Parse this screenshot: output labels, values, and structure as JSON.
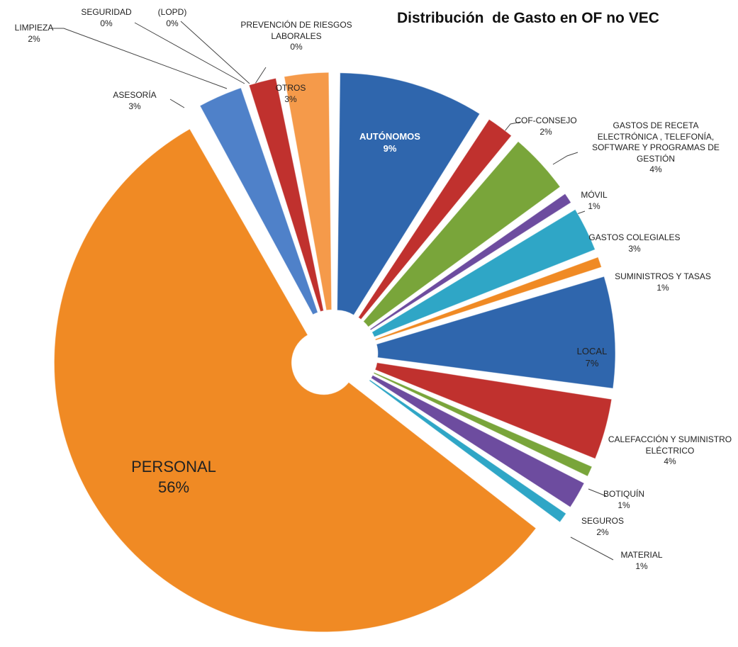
{
  "chart_data": {
    "type": "pie",
    "title": "Distribución  de Gasto en OF no VEC",
    "categories": [
      "AUTÓNOMOS",
      "COF-CONSEJO",
      "GASTOS DE RECETA ELECTRÓNICA , TELEFONÍA, SOFTWARE Y PROGRAMAS DE GESTIÓN",
      "MÓVIL",
      "GASTOS COLEGIALES",
      "SUMINISTROS Y TASAS",
      "LOCAL",
      "CALEFACCIÓN Y SUMINISTRO ELÉCTRICO",
      "BOTIQUÍN",
      "SEGUROS",
      "MATERIAL",
      "PERSONAL",
      "ASESORÍA",
      "LIMPIEZA",
      "SEGURIDAD",
      "(LOPD)",
      "PREVENCIÓN DE RIESGOS LABORALES",
      "OTROS"
    ],
    "values": [
      9,
      2,
      4,
      1,
      3,
      1,
      7,
      4,
      1,
      2,
      1,
      56,
      3,
      2,
      0,
      0,
      0,
      3
    ],
    "value_labels": [
      "9%",
      "2%",
      "4%",
      "1%",
      "3%",
      "1%",
      "7%",
      "4%",
      "1%",
      "2%",
      "1%",
      "56%",
      "3%",
      "2%",
      "0%",
      "0%",
      "0%",
      "3%"
    ],
    "colors": [
      "#2f66ad",
      "#c0312e",
      "#79a53a",
      "#6d4c9f",
      "#2fa6c6",
      "#f08a24",
      "#2f66ad",
      "#c0312e",
      "#79a53a",
      "#6d4c9f",
      "#2fa6c6",
      "#f08a24",
      "#4f81c9",
      "#c0312e",
      "#79a53a",
      "#6d4c9f",
      "#2fa6c6",
      "#f59a4a"
    ]
  }
}
